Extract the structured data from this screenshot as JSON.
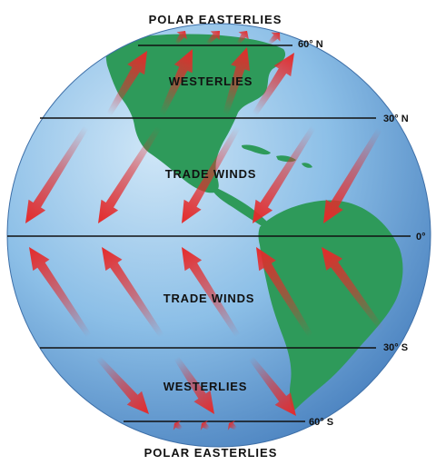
{
  "labels": {
    "top_zone": "POLAR EASTERLIES",
    "bottom_zone": "POLAR EASTERLIES",
    "westerlies_north": "WESTERLIES",
    "trade_winds_north": "TRADE WINDS",
    "trade_winds_south": "TRADE WINDS",
    "westerlies_south": "WESTERLIES"
  },
  "latitudes": {
    "n60": "60° N",
    "n30": "30° N",
    "equator": "0°",
    "s30": "30° S",
    "s60": "60° S"
  },
  "colors": {
    "ocean": "#7db3e0",
    "land": "#2e9a5a",
    "arrow": "#e52a2a",
    "lines": "#111111"
  }
}
